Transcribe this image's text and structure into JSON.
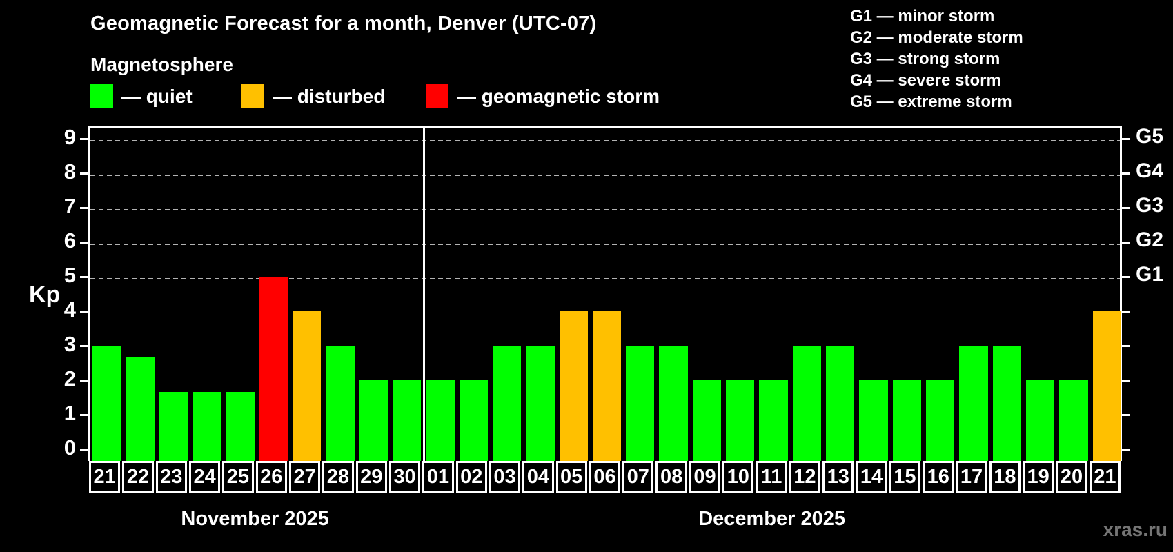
{
  "title": "Geomagnetic Forecast for a month, Denver (UTC-07)",
  "subtitle": "Magnetosphere",
  "legend": {
    "items": [
      {
        "status": "quiet",
        "label": "— quiet"
      },
      {
        "status": "disturbed",
        "label": "— disturbed"
      },
      {
        "status": "storm",
        "label": "— geomagnetic storm"
      }
    ]
  },
  "g_scale_legend": [
    "G1 — minor storm",
    "G2 — moderate storm",
    "G3 — strong storm",
    "G4 — severe storm",
    "G5 — extreme storm"
  ],
  "watermark": "xras.ru",
  "chart_data": {
    "type": "bar",
    "title": "Geomagnetic Forecast for a month, Denver (UTC-07)",
    "ylabel": "Kp",
    "ylim": [
      0,
      9.4
    ],
    "yticks": [
      "0",
      "1",
      "2",
      "3",
      "4",
      "5",
      "6",
      "7",
      "8",
      "9"
    ],
    "grid_levels": [
      5,
      6,
      7,
      8,
      9
    ],
    "grid_color": "#b3b3b3",
    "right_axis": [
      {
        "kp": 5,
        "label": "G1"
      },
      {
        "kp": 6,
        "label": "G2"
      },
      {
        "kp": 7,
        "label": "G3"
      },
      {
        "kp": 8,
        "label": "G4"
      },
      {
        "kp": 9,
        "label": "G5"
      }
    ],
    "status_colors": {
      "quiet": "#00ff00",
      "disturbed": "#ffc000",
      "storm": "#ff0000"
    },
    "months": [
      {
        "label": "November 2025",
        "days": 10
      },
      {
        "label": "December 2025",
        "days": 21
      }
    ],
    "bars": [
      {
        "date": "21",
        "kp": 3,
        "status": "quiet"
      },
      {
        "date": "22",
        "kp": 2.67,
        "status": "quiet"
      },
      {
        "date": "23",
        "kp": 1.67,
        "status": "quiet"
      },
      {
        "date": "24",
        "kp": 1.67,
        "status": "quiet"
      },
      {
        "date": "25",
        "kp": 1.67,
        "status": "quiet"
      },
      {
        "date": "26",
        "kp": 5,
        "status": "storm"
      },
      {
        "date": "27",
        "kp": 4,
        "status": "disturbed"
      },
      {
        "date": "28",
        "kp": 3,
        "status": "quiet"
      },
      {
        "date": "29",
        "kp": 2,
        "status": "quiet"
      },
      {
        "date": "30",
        "kp": 2,
        "status": "quiet"
      },
      {
        "date": "01",
        "kp": 2,
        "status": "quiet"
      },
      {
        "date": "02",
        "kp": 2,
        "status": "quiet"
      },
      {
        "date": "03",
        "kp": 3,
        "status": "quiet"
      },
      {
        "date": "04",
        "kp": 3,
        "status": "quiet"
      },
      {
        "date": "05",
        "kp": 4,
        "status": "disturbed"
      },
      {
        "date": "06",
        "kp": 4,
        "status": "disturbed"
      },
      {
        "date": "07",
        "kp": 3,
        "status": "quiet"
      },
      {
        "date": "08",
        "kp": 3,
        "status": "quiet"
      },
      {
        "date": "09",
        "kp": 2,
        "status": "quiet"
      },
      {
        "date": "10",
        "kp": 2,
        "status": "quiet"
      },
      {
        "date": "11",
        "kp": 2,
        "status": "quiet"
      },
      {
        "date": "12",
        "kp": 3,
        "status": "quiet"
      },
      {
        "date": "13",
        "kp": 3,
        "status": "quiet"
      },
      {
        "date": "14",
        "kp": 2,
        "status": "quiet"
      },
      {
        "date": "15",
        "kp": 2,
        "status": "quiet"
      },
      {
        "date": "16",
        "kp": 2,
        "status": "quiet"
      },
      {
        "date": "17",
        "kp": 3,
        "status": "quiet"
      },
      {
        "date": "18",
        "kp": 3,
        "status": "quiet"
      },
      {
        "date": "19",
        "kp": 2,
        "status": "quiet"
      },
      {
        "date": "20",
        "kp": 2,
        "status": "quiet"
      },
      {
        "date": "21",
        "kp": 4,
        "status": "disturbed"
      }
    ]
  }
}
